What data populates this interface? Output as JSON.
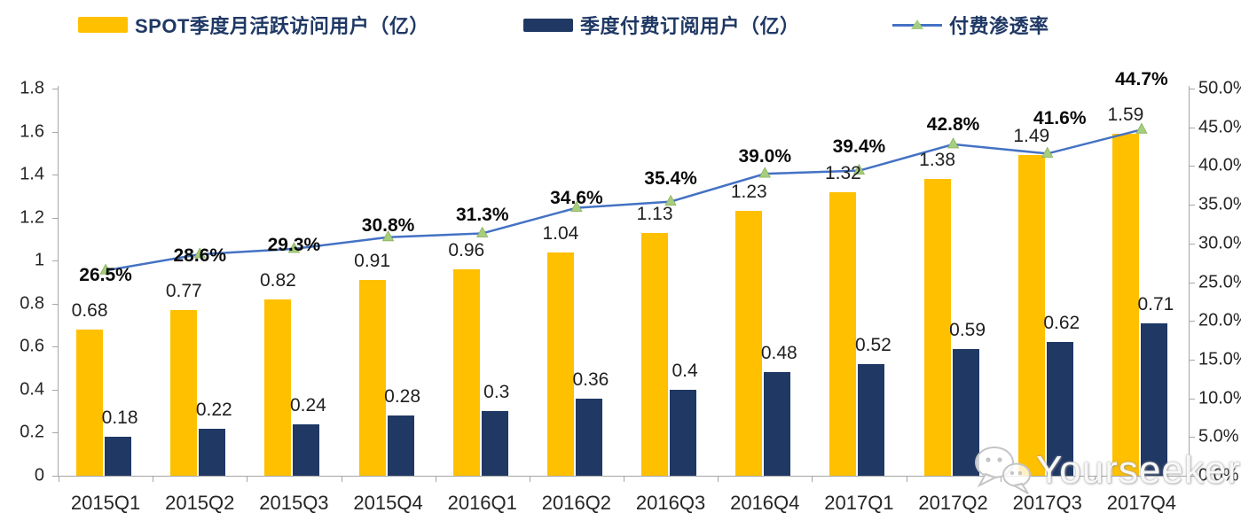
{
  "legend": [
    {
      "label": "SPOT季度月活跃访问用户（亿）",
      "color": "#FFC000",
      "type": "bar"
    },
    {
      "label": "季度付费订阅用户（亿）",
      "color": "#1F3864",
      "type": "bar"
    },
    {
      "label": "付费渗透率",
      "color": "#4472C4",
      "marker_color": "#A6CE7E",
      "type": "line"
    }
  ],
  "watermark": {
    "text": "Yourseeker",
    "icon": "wechat-logo"
  },
  "chart_data": {
    "type": "bar+line combo, dual axis",
    "categories": [
      "2015Q1",
      "2015Q2",
      "2015Q3",
      "2015Q4",
      "2016Q1",
      "2016Q2",
      "2016Q3",
      "2016Q4",
      "2017Q1",
      "2017Q2",
      "2017Q3",
      "2017Q4"
    ],
    "series": [
      {
        "name": "SPOT季度月活跃访问用户（亿）",
        "type": "bar",
        "axis": "left",
        "color": "#FFC000",
        "values": [
          0.68,
          0.77,
          0.82,
          0.91,
          0.96,
          1.04,
          1.13,
          1.23,
          1.32,
          1.38,
          1.49,
          1.59
        ],
        "labels": [
          "0.68",
          "0.77",
          "0.82",
          "0.91",
          "0.96",
          "1.04",
          "1.13",
          "1.23",
          "1.32",
          "1.38",
          "1.49",
          "1.59"
        ]
      },
      {
        "name": "季度付费订阅用户（亿）",
        "type": "bar",
        "axis": "left",
        "color": "#1F3864",
        "values": [
          0.18,
          0.22,
          0.24,
          0.28,
          0.3,
          0.36,
          0.4,
          0.48,
          0.52,
          0.59,
          0.62,
          0.71
        ],
        "labels": [
          "0.18",
          "0.22",
          "0.24",
          "0.28",
          "0.3",
          "0.36",
          "0.4",
          "0.48",
          "0.52",
          "0.59",
          "0.62",
          "0.71"
        ]
      },
      {
        "name": "付费渗透率",
        "type": "line",
        "axis": "right",
        "color": "#4472C4",
        "marker": "triangle",
        "marker_color": "#A6CE7E",
        "values": [
          26.5,
          28.6,
          29.3,
          30.8,
          31.3,
          34.6,
          35.4,
          39.0,
          39.4,
          42.8,
          41.6,
          44.7
        ],
        "labels": [
          "26.5%",
          "28.6%",
          "29.3%",
          "30.8%",
          "31.3%",
          "34.6%",
          "35.4%",
          "39.0%",
          "39.4%",
          "42.8%",
          "41.6%",
          "44.7%"
        ]
      }
    ],
    "left_axis": {
      "min": 0,
      "max": 1.8,
      "step": 0.2,
      "ticks": [
        "0",
        "0.2",
        "0.4",
        "0.6",
        "0.8",
        "1",
        "1.2",
        "1.4",
        "1.6",
        "1.8"
      ]
    },
    "right_axis": {
      "min": 0,
      "max": 50,
      "step": 5,
      "ticks": [
        "0.0%",
        "5.0%",
        "10.0%",
        "15.0%",
        "20.0%",
        "25.0%",
        "30.0%",
        "35.0%",
        "40.0%",
        "45.0%",
        "50.0%"
      ]
    },
    "grid": false,
    "legend_position": "top"
  }
}
